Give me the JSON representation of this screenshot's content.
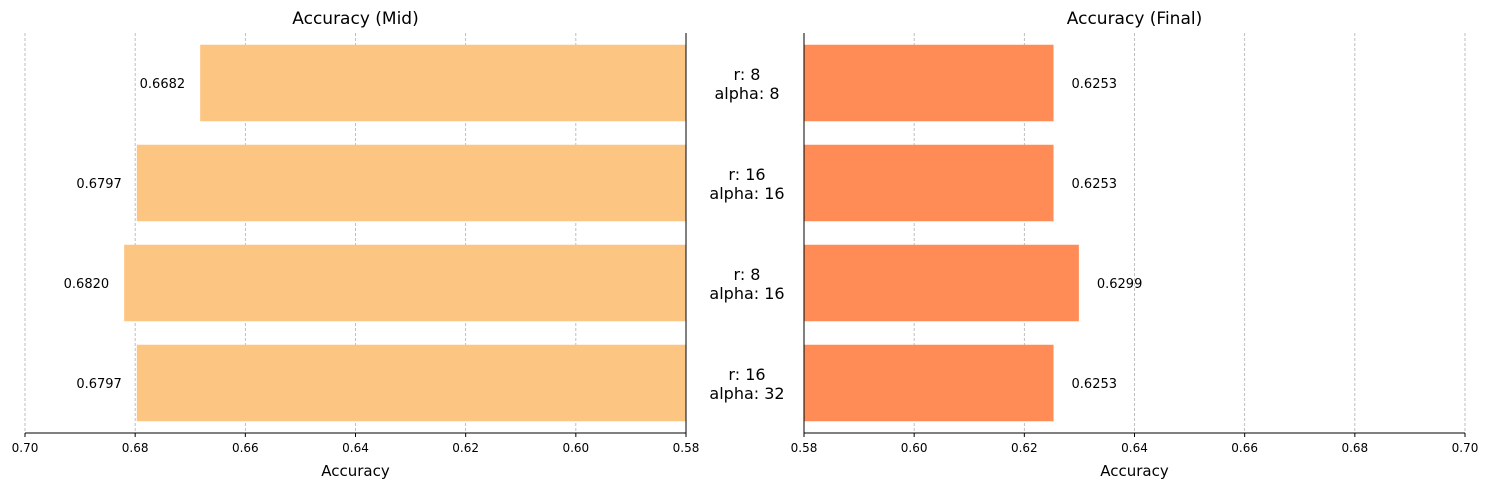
{
  "chart_data": [
    {
      "type": "bar",
      "orientation": "horizontal",
      "title": "Accuracy (Mid)",
      "xlabel": "Accuracy",
      "ylabel": "",
      "xlim": [
        0.7,
        0.58
      ],
      "x_inverted": true,
      "xticks": [
        "0.70",
        "0.68",
        "0.66",
        "0.64",
        "0.62",
        "0.60",
        "0.58"
      ],
      "grid": "x-dashed",
      "color": "#FDC582",
      "categories": [
        "r: 8\nalpha: 8",
        "r: 16\nalpha: 16",
        "r: 8\nalpha: 16",
        "r: 16\nalpha: 32"
      ],
      "values": [
        0.6682,
        0.6797,
        0.682,
        0.6797
      ],
      "data_labels": [
        "0.6682",
        "0.6797",
        "0.6820",
        "0.6797"
      ]
    },
    {
      "type": "bar",
      "orientation": "horizontal",
      "title": "Accuracy (Final)",
      "xlabel": "Accuracy",
      "ylabel": "",
      "xlim": [
        0.58,
        0.7
      ],
      "x_inverted": false,
      "xticks": [
        "0.58",
        "0.60",
        "0.62",
        "0.64",
        "0.66",
        "0.68",
        "0.70"
      ],
      "grid": "x-dashed",
      "color": "#FF8C57",
      "categories": [
        "r: 8\nalpha: 8",
        "r: 16\nalpha: 16",
        "r: 8\nalpha: 16",
        "r: 16\nalpha: 32"
      ],
      "values": [
        0.6253,
        0.6253,
        0.6299,
        0.6253
      ],
      "data_labels": [
        "0.6253",
        "0.6253",
        "0.6299",
        "0.6253"
      ]
    }
  ]
}
